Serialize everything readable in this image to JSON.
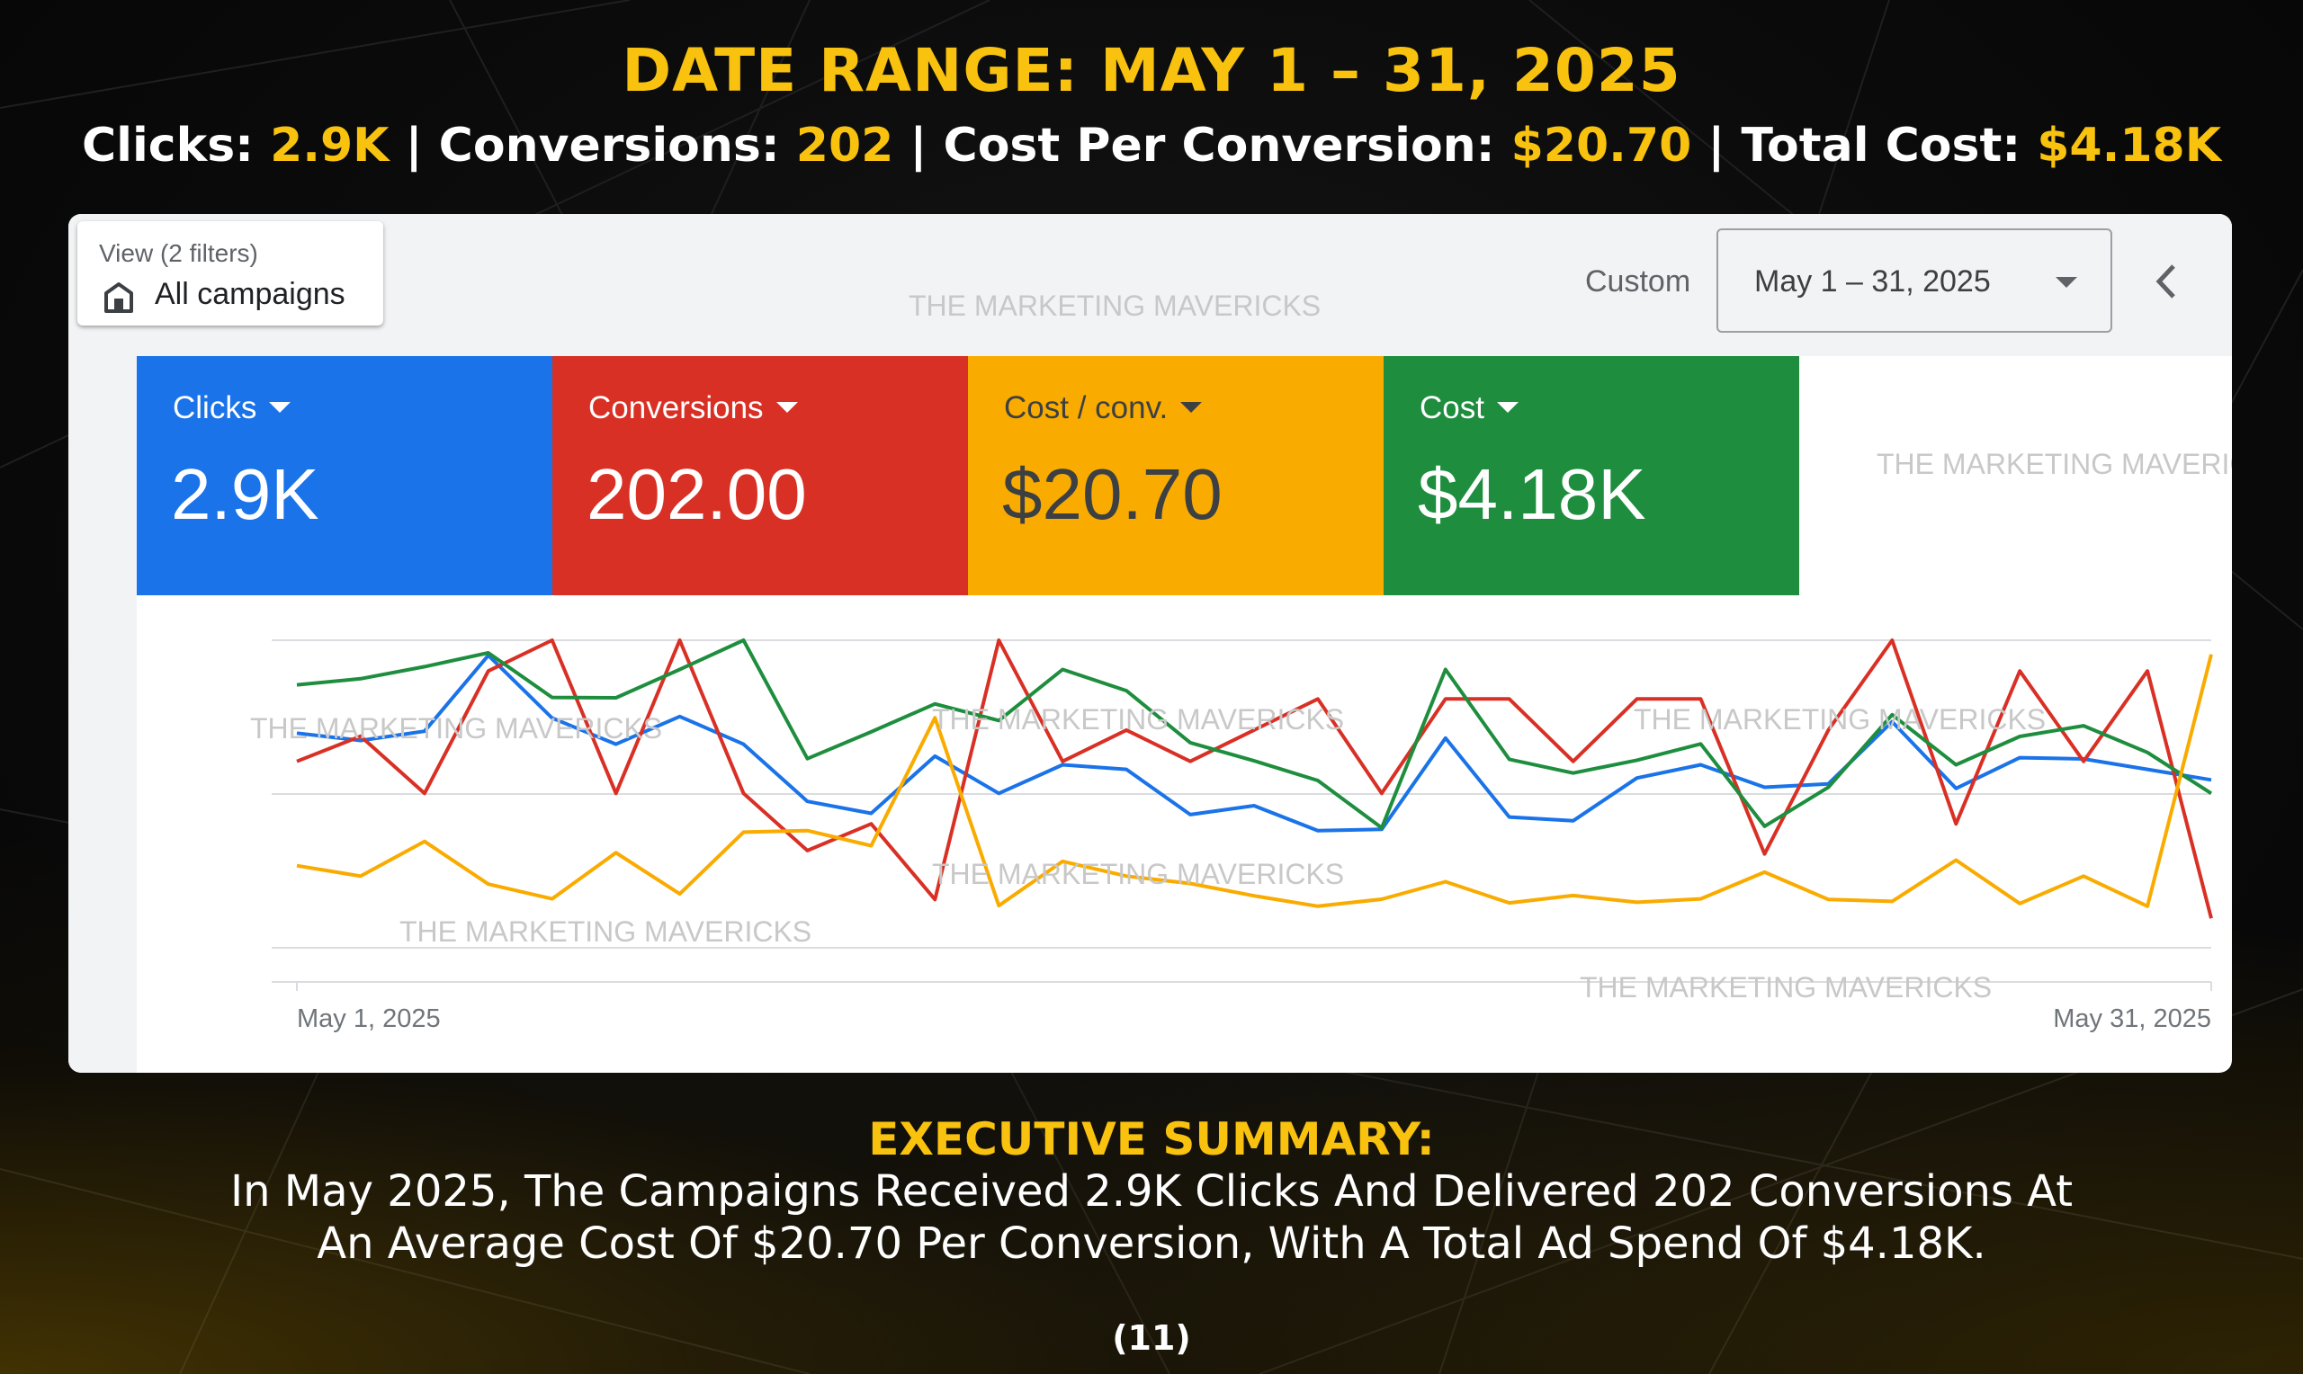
{
  "header": {
    "title": "DATE RANGE: MAY 1 – 31, 2025",
    "stats": [
      {
        "label": "Clicks: ",
        "value": "2.9K"
      },
      {
        "label": " | Conversions: ",
        "value": "202"
      },
      {
        "label": " | Cost Per Conversion: ",
        "value": "$20.70"
      },
      {
        "label": " | Total Cost: ",
        "value": "$4.18K"
      }
    ]
  },
  "toolbar": {
    "view_label": "View (2 filters)",
    "view_value": "All campaigns",
    "custom_label": "Custom",
    "date_range": "May 1 – 31, 2025"
  },
  "watermark": "THE MARKETING MAVERICKS",
  "cards": [
    {
      "label": "Clicks",
      "value": "2.9K",
      "color": "#1a73e8",
      "text_color": "#ffffff"
    },
    {
      "label": "Conversions",
      "value": "202.00",
      "color": "#d93025",
      "text_color": "#ffffff"
    },
    {
      "label": "Cost / conv.",
      "value": "$20.70",
      "color": "#f9ab00",
      "text_color": "#3c4043"
    },
    {
      "label": "Cost",
      "value": "$4.18K",
      "color": "#1e8e3e",
      "text_color": "#ffffff"
    }
  ],
  "chart_data": {
    "type": "line",
    "x_start_label": "May 1, 2025",
    "x_end_label": "May 31, 2025",
    "x": [
      "May 1",
      "May 2",
      "May 3",
      "May 4",
      "May 5",
      "May 6",
      "May 7",
      "May 8",
      "May 9",
      "May 10",
      "May 11",
      "May 12",
      "May 13",
      "May 14",
      "May 15",
      "May 16",
      "May 17",
      "May 18",
      "May 19",
      "May 20",
      "May 21",
      "May 22",
      "May 23",
      "May 24",
      "May 25",
      "May 26",
      "May 27",
      "May 28",
      "May 29",
      "May 30",
      "May 31"
    ],
    "grid": true,
    "ylim": [
      0,
      100
    ],
    "series": [
      {
        "color": "#1a73e8",
        "values": [
          69.8,
          67.4,
          70.4,
          95.1,
          74.7,
          66.2,
          75.2,
          66.2,
          47.6,
          43.7,
          62.3,
          50.2,
          59.5,
          58.0,
          43.3,
          46.2,
          38.1,
          38.5,
          68.2,
          42.5,
          41.3,
          55.2,
          59.5,
          52.2,
          53.3,
          73.5,
          51.8,
          61.8,
          61.4,
          58.0,
          54.6
        ]
      },
      {
        "color": "#d93025",
        "values": [
          60.6,
          68.8,
          50.2,
          90.0,
          100.0,
          50.2,
          100.0,
          50.2,
          31.6,
          40.3,
          15.7,
          100.0,
          60.6,
          70.8,
          60.6,
          70.8,
          80.9,
          50.2,
          80.9,
          80.9,
          60.6,
          80.9,
          80.9,
          30.5,
          70.8,
          100.0,
          40.3,
          90.0,
          60.6,
          90.0,
          9.6
        ]
      },
      {
        "color": "#1e8e3e",
        "values": [
          85.5,
          87.5,
          91.4,
          95.9,
          81.4,
          81.3,
          90.5,
          100.0,
          61.5,
          70.2,
          79.3,
          73.9,
          90.5,
          83.6,
          66.7,
          60.8,
          54.4,
          39.0,
          90.5,
          61.3,
          56.8,
          61.0,
          66.3,
          39.5,
          52.2,
          75.8,
          59.5,
          68.7,
          72.2,
          63.5,
          50.2
        ]
      },
      {
        "color": "#f9ab00",
        "values": [
          26.7,
          23.3,
          34.6,
          20.7,
          15.9,
          30.9,
          17.5,
          37.6,
          38.1,
          33.2,
          74.8,
          13.7,
          28.1,
          23.3,
          20.9,
          16.9,
          13.5,
          15.8,
          21.5,
          14.6,
          17.0,
          14.8,
          15.9,
          24.6,
          15.7,
          15.1,
          28.5,
          14.4,
          23.3,
          13.5,
          95.4
        ]
      }
    ]
  },
  "summary": {
    "title": "EXECUTIVE SUMMARY:",
    "text": "In May 2025, The Campaigns Received 2.9K Clicks And Delivered 202 Conversions At An Average Cost Of $20.70 Per Conversion, With A Total Ad Spend Of $4.18K."
  },
  "page_number": "(11)"
}
